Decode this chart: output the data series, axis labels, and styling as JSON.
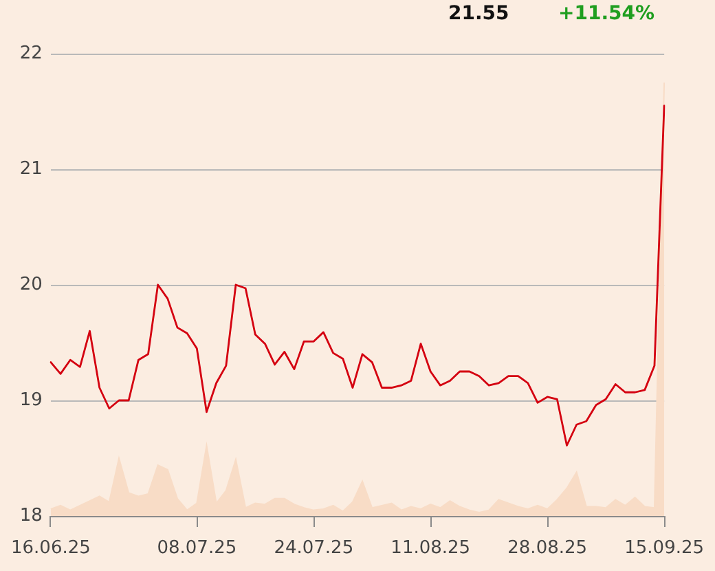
{
  "chart_data": {
    "type": "line",
    "annotations": [
      "21.55",
      "+11.54%"
    ],
    "categories": [
      "16.06.25",
      null,
      null,
      null,
      null,
      null,
      null,
      null,
      null,
      null,
      null,
      null,
      null,
      null,
      null,
      "08.07.25",
      null,
      null,
      null,
      null,
      null,
      null,
      null,
      null,
      null,
      null,
      null,
      "24.07.25",
      null,
      null,
      null,
      null,
      null,
      null,
      null,
      null,
      null,
      null,
      null,
      "11.08.25",
      null,
      null,
      null,
      null,
      null,
      null,
      null,
      null,
      null,
      null,
      null,
      "28.08.25",
      null,
      null,
      null,
      null,
      null,
      null,
      null,
      null,
      null,
      null,
      null,
      "15.09.25"
    ],
    "series": [
      {
        "color": "#d40010",
        "values": [
          19.33,
          19.23,
          19.35,
          19.29,
          19.6,
          19.11,
          18.93,
          19.0,
          19.0,
          19.35,
          19.4,
          20.0,
          19.88,
          19.63,
          19.58,
          19.45,
          18.9,
          19.15,
          19.3,
          20.0,
          19.97,
          19.57,
          19.49,
          19.31,
          19.42,
          19.27,
          19.51,
          19.51,
          19.59,
          19.41,
          19.36,
          19.11,
          19.4,
          19.33,
          19.11,
          19.11,
          19.13,
          19.17,
          19.49,
          19.25,
          19.13,
          19.17,
          19.25,
          19.25,
          19.21,
          19.13,
          19.15,
          19.21,
          19.21,
          19.15,
          18.98,
          19.03,
          19.01,
          18.61,
          18.79,
          18.82,
          18.96,
          19.01,
          19.14,
          19.07,
          19.07,
          19.09,
          19.3,
          21.55
        ]
      },
      {
        "type": "area",
        "color": "#f8dcc6",
        "values": [
          18.06,
          18.09,
          18.05,
          18.09,
          18.13,
          18.17,
          18.12,
          18.5,
          18.2,
          18.17,
          18.19,
          18.44,
          18.4,
          18.15,
          18.05,
          18.11,
          18.61,
          18.11,
          18.22,
          18.49,
          18.07,
          18.11,
          18.1,
          18.15,
          18.15,
          18.1,
          18.07,
          18.05,
          18.06,
          18.09,
          18.04,
          18.12,
          18.3,
          18.07,
          18.09,
          18.11,
          18.05,
          18.08,
          18.06,
          18.1,
          18.07,
          18.13,
          18.08,
          18.05,
          18.03,
          18.05,
          18.14,
          18.11,
          18.08,
          18.06,
          18.09,
          18.06,
          18.14,
          18.24,
          18.38,
          18.08,
          18.08,
          18.07,
          18.14,
          18.09,
          18.16,
          18.08,
          18.07,
          21.75
        ]
      }
    ],
    "ylim": [
      18,
      22
    ],
    "yticks": [
      18,
      19,
      20,
      21,
      22
    ],
    "grid": "y",
    "legend": false,
    "marker": "none"
  }
}
